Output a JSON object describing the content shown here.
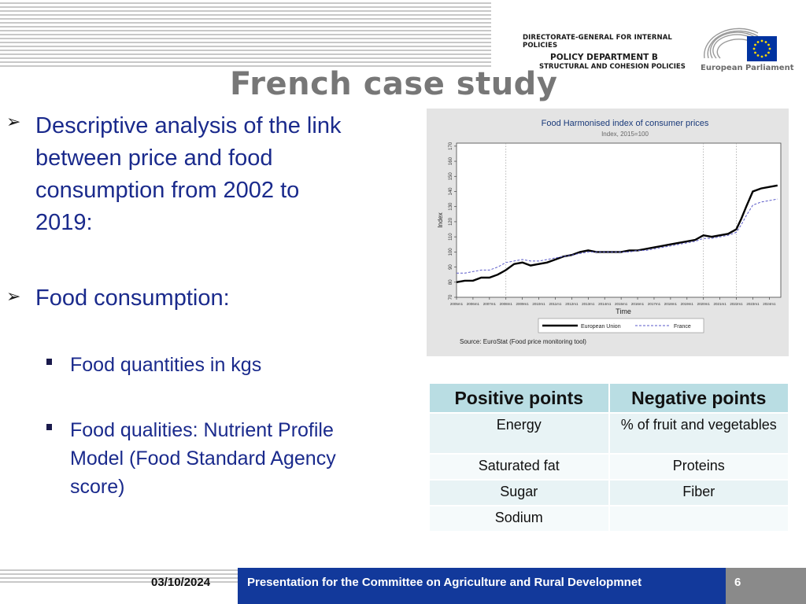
{
  "header": {
    "dg_line1": "DIRECTORATE-GENERAL FOR INTERNAL POLICIES",
    "dg_line2": "POLICY DEPARTMENT B",
    "dg_line3": "STRUCTURAL AND COHESION POLICIES",
    "ep_name": "European Parliament"
  },
  "title": "French case study",
  "bullets": {
    "b1_lines": [
      "Descriptive analysis of the link",
      "between price and food",
      "consumption from 2002 to",
      "2019:"
    ],
    "b2": "Food consumption:",
    "sub1": "Food quantities in kgs",
    "sub2_lines": [
      "Food qualities: Nutrient Profile",
      "Model (Food Standard Agency",
      "score)"
    ]
  },
  "table": {
    "headers": [
      "Positive points",
      "Negative points"
    ],
    "rows": [
      [
        "Energy",
        "% of fruit and vegetables"
      ],
      [
        "Saturated fat",
        "Proteins"
      ],
      [
        "Sugar",
        "Fiber"
      ],
      [
        "Sodium",
        ""
      ]
    ]
  },
  "footer": {
    "date": "03/10/2024",
    "text": "Presentation for the Committee on Agriculture and Rural Developmnet",
    "page": "6"
  },
  "colors": {
    "footer_blue": "#12399b",
    "bullet_text": "#1a2a8c",
    "table_header": "#b9dde3",
    "eu_blue": "#0033a0"
  },
  "chart_data": {
    "type": "line",
    "title": "Food Harmonised index of consumer prices",
    "subtitle": "Index, 2015=100",
    "xlabel": "Time",
    "ylabel": "Index",
    "source": "Source: EuroStat (Food price monitoring tool)",
    "xticks": [
      "2005m1",
      "2006m1",
      "2007m1",
      "2008m1",
      "2009m1",
      "2010m1",
      "2011m1",
      "2012m1",
      "2013m1",
      "2014m1",
      "2015m1",
      "2016m1",
      "2017m1",
      "2018m1",
      "2019m1",
      "2020m1",
      "2021m1",
      "2022m1",
      "2023m1",
      "2024m1"
    ],
    "xlim": [
      2005.0,
      2024.7
    ],
    "yticks": [
      70,
      80,
      90,
      100,
      110,
      120,
      130,
      140,
      150,
      160,
      170
    ],
    "ylim": [
      70,
      172
    ],
    "vlines": [
      2008.0,
      2020.0,
      2022.0
    ],
    "legend_position": "bottom",
    "series": [
      {
        "name": "European Union",
        "style": "solid",
        "x": [
          2005.0,
          2005.5,
          2006.0,
          2006.5,
          2007.0,
          2007.5,
          2008.0,
          2008.5,
          2009.0,
          2009.5,
          2010.0,
          2010.5,
          2011.0,
          2011.5,
          2012.0,
          2012.5,
          2013.0,
          2013.5,
          2014.0,
          2014.5,
          2015.0,
          2015.5,
          2016.0,
          2016.5,
          2017.0,
          2017.5,
          2018.0,
          2018.5,
          2019.0,
          2019.5,
          2020.0,
          2020.5,
          2021.0,
          2021.5,
          2022.0,
          2022.3,
          2022.6,
          2023.0,
          2023.5,
          2024.0,
          2024.5
        ],
        "y": [
          80,
          81,
          81,
          83,
          83,
          85,
          88,
          92,
          93,
          91,
          92,
          93,
          95,
          97,
          98,
          100,
          101,
          100,
          100,
          100,
          100,
          101,
          101,
          102,
          103,
          104,
          105,
          106,
          107,
          108,
          111,
          110,
          111,
          112,
          115,
          122,
          130,
          140,
          142,
          143,
          144
        ]
      },
      {
        "name": "France",
        "style": "dashed",
        "x": [
          2005.0,
          2005.5,
          2006.0,
          2006.5,
          2007.0,
          2007.5,
          2008.0,
          2008.5,
          2009.0,
          2009.5,
          2010.0,
          2010.5,
          2011.0,
          2011.5,
          2012.0,
          2012.5,
          2013.0,
          2013.5,
          2014.0,
          2014.5,
          2015.0,
          2015.5,
          2016.0,
          2016.5,
          2017.0,
          2017.5,
          2018.0,
          2018.5,
          2019.0,
          2019.5,
          2020.0,
          2020.5,
          2021.0,
          2021.5,
          2022.0,
          2022.3,
          2022.6,
          2023.0,
          2023.5,
          2024.0,
          2024.5
        ],
        "y": [
          86,
          86,
          87,
          88,
          88,
          90,
          93,
          94,
          95,
          94,
          94,
          95,
          96,
          97,
          98,
          99,
          100,
          100,
          100,
          100,
          100,
          100,
          101,
          101,
          102,
          103,
          104,
          105,
          106,
          107,
          109,
          109,
          110,
          111,
          113,
          118,
          124,
          131,
          133,
          134,
          135
        ]
      }
    ]
  }
}
